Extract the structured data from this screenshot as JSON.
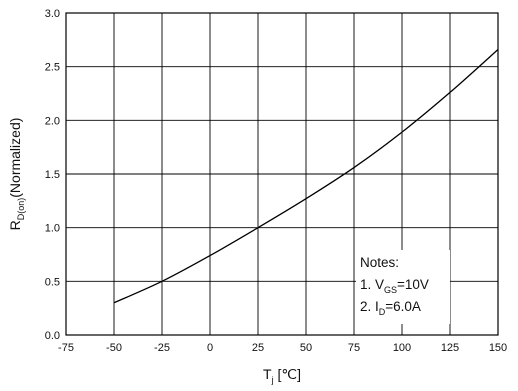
{
  "chart_data": {
    "type": "line",
    "x": [
      -50,
      -25,
      0,
      25,
      50,
      75,
      100,
      125,
      150
    ],
    "series": [
      {
        "values": [
          0.3,
          0.5,
          0.74,
          1.0,
          1.27,
          1.56,
          1.89,
          2.26,
          2.66
        ]
      }
    ],
    "xlabel": {
      "main": "T",
      "sub": "j",
      "unit": " [℃]"
    },
    "ylabel": {
      "main": "R",
      "sub": "D(on)",
      "rest": "(Normalized)"
    },
    "xlim": [
      -75,
      150
    ],
    "ylim": [
      0.0,
      3.0
    ],
    "xticks": [
      "-75",
      "-50",
      "-25",
      "0",
      "25",
      "50",
      "75",
      "100",
      "125",
      "150"
    ],
    "yticks": [
      "0.0",
      "0.5",
      "1.0",
      "1.5",
      "2.0",
      "2.5",
      "3.0"
    ],
    "grid": true,
    "notes": {
      "title": "Notes:",
      "line1_prefix": "1. V",
      "line1_sub": "GS",
      "line1_value": "=10V",
      "line2_prefix": "2. I",
      "line2_sub": "D",
      "line2_value": "=6.0A"
    }
  }
}
